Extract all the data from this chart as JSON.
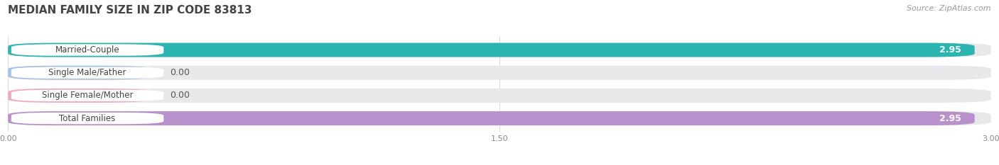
{
  "title": "MEDIAN FAMILY SIZE IN ZIP CODE 83813",
  "source": "Source: ZipAtlas.com",
  "categories": [
    "Married-Couple",
    "Single Male/Father",
    "Single Female/Mother",
    "Total Families"
  ],
  "values": [
    2.95,
    0.0,
    0.0,
    2.95
  ],
  "bar_colors": [
    "#2ab5b0",
    "#a8c0e8",
    "#f4a8bc",
    "#b890cc"
  ],
  "bar_bg_color": "#e8e8ea",
  "xlim": [
    0,
    3.0
  ],
  "xticks": [
    0.0,
    1.5,
    3.0
  ],
  "xtick_labels": [
    "0.00",
    "1.50",
    "3.00"
  ],
  "bg_color": "#ffffff",
  "title_fontsize": 11,
  "source_fontsize": 8,
  "bar_label_fontsize": 9,
  "tick_fontsize": 8,
  "category_fontsize": 8.5
}
